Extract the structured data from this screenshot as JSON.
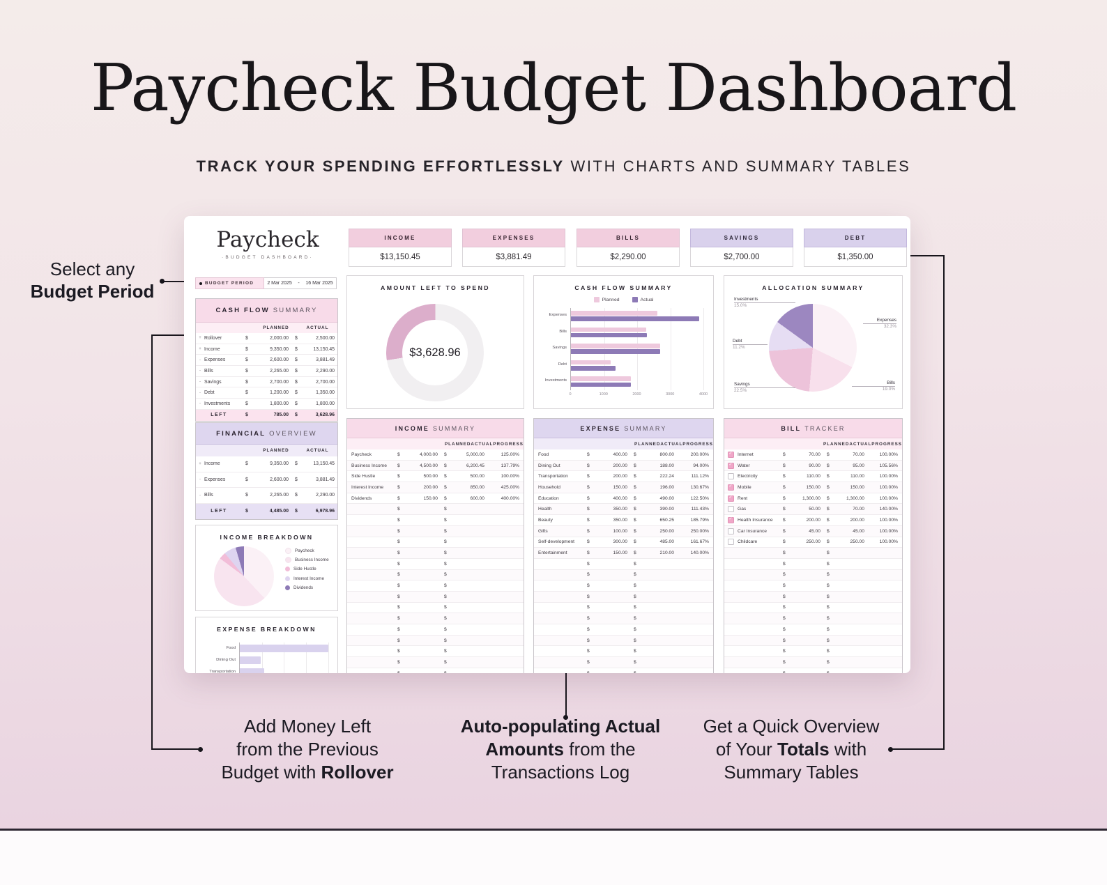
{
  "page": {
    "title": "Paycheck Budget Dashboard",
    "subtitle_bold": "TRACK YOUR SPENDING EFFORTLESSLY",
    "subtitle_rest": " WITH CHARTS AND SUMMARY TABLES"
  },
  "annotations": {
    "budget_period": {
      "line1": "Select any",
      "line2_bold": "Budget Period"
    },
    "rollover": {
      "line1": "Add Money Left",
      "line2": "from the Previous",
      "line3_pre": "Budget with ",
      "line3_bold": "Rollover"
    },
    "auto": {
      "line1_bold": "Auto-populating Actual",
      "line2_bold": "Amounts",
      "line2_rest": " from the",
      "line3": "Transactions Log"
    },
    "overview": {
      "line1": "Get a Quick Overview",
      "line2_pre": "of Your ",
      "line2_bold": "Totals",
      "line2_post": " with",
      "line3": "Summary Tables"
    }
  },
  "dashboard": {
    "logo": {
      "name": "Paycheck",
      "tagline": "·BUDGET DASHBOARD·"
    },
    "cards": [
      {
        "label": "INCOME",
        "value": "$13,150.45",
        "theme": "pink"
      },
      {
        "label": "EXPENSES",
        "value": "$3,881.49",
        "theme": "pink"
      },
      {
        "label": "BILLS",
        "value": "$2,290.00",
        "theme": "pink"
      },
      {
        "label": "SAVINGS",
        "value": "$2,700.00",
        "theme": "lav"
      },
      {
        "label": "DEBT",
        "value": "$1,350.00",
        "theme": "lav"
      }
    ],
    "budget_period": {
      "label": "BUDGET PERIOD",
      "start": "2 Mar 2025",
      "sep": "-",
      "end": "16 Mar 2025"
    },
    "cash_flow_table": {
      "title_bold": "CASH FLOW",
      "title_rest": "SUMMARY",
      "col_planned": "PLANNED",
      "col_actual": "ACTUAL",
      "rows": [
        {
          "sign": "+",
          "label": "Rollover",
          "planned": "2,000.00",
          "actual": "2,500.00"
        },
        {
          "sign": "+",
          "label": "Income",
          "planned": "9,350.00",
          "actual": "13,150.45"
        },
        {
          "sign": "-",
          "label": "Expenses",
          "planned": "2,600.00",
          "actual": "3,881.49"
        },
        {
          "sign": "-",
          "label": "Bills",
          "planned": "2,265.00",
          "actual": "2,290.00"
        },
        {
          "sign": "-",
          "label": "Savings",
          "planned": "2,700.00",
          "actual": "2,700.00"
        },
        {
          "sign": "-",
          "label": "Debt",
          "planned": "1,200.00",
          "actual": "1,350.00"
        },
        {
          "sign": "-",
          "label": "Investments",
          "planned": "1,800.00",
          "actual": "1,800.00"
        }
      ],
      "total": {
        "label": "LEFT",
        "planned": "785.00",
        "actual": "3,628.96"
      }
    },
    "financial_overview": {
      "title_bold": "FINANCIAL",
      "title_rest": "OVERVIEW",
      "col_planned": "PLANNED",
      "col_actual": "ACTUAL",
      "rows": [
        {
          "sign": "+",
          "label": "Income",
          "planned": "9,350.00",
          "actual": "13,150.45"
        },
        {
          "sign": "-",
          "label": "Expenses",
          "planned": "2,600.00",
          "actual": "3,881.49"
        },
        {
          "sign": "-",
          "label": "Bills",
          "planned": "2,265.00",
          "actual": "2,290.00"
        }
      ],
      "total": {
        "label": "LEFT",
        "planned": "4,485.00",
        "actual": "6,978.96"
      }
    },
    "income_summary": {
      "title_bold": "INCOME",
      "title_rest": "SUMMARY",
      "cols": [
        "PLANNED",
        "ACTUAL",
        "PROGRESS"
      ],
      "rows": [
        {
          "label": "Paycheck",
          "planned": "4,000.00",
          "actual": "5,000.00",
          "progress": "125.00%"
        },
        {
          "label": "Business Income",
          "planned": "4,500.00",
          "actual": "6,200.45",
          "progress": "137.79%"
        },
        {
          "label": "Side Hustle",
          "planned": "500.00",
          "actual": "500.00",
          "progress": "100.00%"
        },
        {
          "label": "Interest Income",
          "planned": "200.00",
          "actual": "850.00",
          "progress": "425.00%"
        },
        {
          "label": "Dividends",
          "planned": "150.00",
          "actual": "600.00",
          "progress": "400.00%"
        }
      ],
      "empty_rows": 18
    },
    "expense_summary": {
      "title_bold": "EXPENSE",
      "title_rest": "SUMMARY",
      "cols": [
        "PLANNED",
        "ACTUAL",
        "PROGRESS"
      ],
      "rows": [
        {
          "label": "Food",
          "planned": "400.00",
          "actual": "800.00",
          "progress": "200.00%"
        },
        {
          "label": "Dining Out",
          "planned": "200.00",
          "actual": "188.00",
          "progress": "94.00%"
        },
        {
          "label": "Transportation",
          "planned": "200.00",
          "actual": "222.24",
          "progress": "111.12%"
        },
        {
          "label": "Household",
          "planned": "150.00",
          "actual": "196.00",
          "progress": "130.67%"
        },
        {
          "label": "Education",
          "planned": "400.00",
          "actual": "490.00",
          "progress": "122.50%"
        },
        {
          "label": "Health",
          "planned": "350.00",
          "actual": "390.00",
          "progress": "111.43%"
        },
        {
          "label": "Beauty",
          "planned": "350.00",
          "actual": "650.25",
          "progress": "185.79%"
        },
        {
          "label": "Gifts",
          "planned": "100.00",
          "actual": "250.00",
          "progress": "250.00%"
        },
        {
          "label": "Self-development",
          "planned": "300.00",
          "actual": "485.00",
          "progress": "161.67%"
        },
        {
          "label": "Entertainment",
          "planned": "150.00",
          "actual": "210.00",
          "progress": "140.00%"
        }
      ],
      "empty_rows": 14
    },
    "bill_tracker": {
      "title_bold": "BILL",
      "title_rest": "TRACKER",
      "cols": [
        "PLANNED",
        "ACTUAL",
        "PROGRESS"
      ],
      "rows": [
        {
          "checked": true,
          "label": "Internet",
          "planned": "70.00",
          "actual": "70.00",
          "progress": "100.00%"
        },
        {
          "checked": true,
          "label": "Water",
          "planned": "90.00",
          "actual": "95.00",
          "progress": "105.56%"
        },
        {
          "checked": false,
          "label": "Electricity",
          "planned": "110.00",
          "actual": "110.00",
          "progress": "100.00%"
        },
        {
          "checked": true,
          "label": "Mobile",
          "planned": "150.00",
          "actual": "150.00",
          "progress": "100.00%"
        },
        {
          "checked": true,
          "label": "Rent",
          "planned": "1,300.00",
          "actual": "1,300.00",
          "progress": "100.00%"
        },
        {
          "checked": false,
          "label": "Gas",
          "planned": "50.00",
          "actual": "70.00",
          "progress": "140.00%"
        },
        {
          "checked": true,
          "label": "Health Insurance",
          "planned": "200.00",
          "actual": "200.00",
          "progress": "100.00%"
        },
        {
          "checked": false,
          "label": "Car Insurance",
          "planned": "45.00",
          "actual": "45.00",
          "progress": "100.00%"
        },
        {
          "checked": false,
          "label": "Childcare",
          "planned": "250.00",
          "actual": "250.00",
          "progress": "100.00%"
        }
      ],
      "empty_rows": 15
    }
  },
  "chart_data": [
    {
      "type": "donut",
      "title": "AMOUNT LEFT TO SPEND",
      "center_label": "$3,628.96",
      "amount_left": 3628.96,
      "total_income": 13150.45,
      "fraction_filled": 0.276,
      "start_deg": 261,
      "fill_color": "#dcaecb",
      "track_color": "#f1eff1"
    },
    {
      "type": "bar",
      "orientation": "horizontal",
      "title": "CASH FLOW SUMMARY",
      "categories": [
        "Expenses",
        "Bills",
        "Savings",
        "Debt",
        "Investments"
      ],
      "series": [
        {
          "name": "Planned",
          "color": "#eec9dd",
          "values": [
            2600,
            2265,
            2700,
            1200,
            1800
          ]
        },
        {
          "name": "Actual",
          "color": "#8d7ab6",
          "values": [
            3881.49,
            2290,
            2700,
            1350,
            1800
          ]
        }
      ],
      "xlim": [
        0,
        4000
      ],
      "xticks": [
        "0",
        "1000",
        "2000",
        "3000",
        "4000"
      ],
      "legend_position": "top",
      "grid": true
    },
    {
      "type": "pie",
      "title": "ALLOCATION SUMMARY",
      "labels": [
        "Expenses",
        "Bills",
        "Savings",
        "Debt",
        "Investments"
      ],
      "values": [
        32.3,
        19.0,
        22.5,
        11.2,
        15.0
      ],
      "pct": [
        "32.3%",
        "19.0%",
        "22.5%",
        "11.2%",
        "15.0%"
      ],
      "colors": [
        "#fbf1f6",
        "#f8e0ec",
        "#edc3da",
        "#e6ddf3",
        "#9c87c0"
      ]
    },
    {
      "type": "pie",
      "title": "INCOME BREAKDOWN",
      "labels": [
        "Paycheck",
        "Business Income",
        "Side Hustle",
        "Interest Income",
        "Dividends"
      ],
      "values": [
        5000,
        6200.45,
        500,
        850,
        600
      ],
      "colors": [
        "#fbf1f6",
        "#f8e4ef",
        "#f2bdd8",
        "#ded4f0",
        "#8d7ab6"
      ],
      "legend_position": "right"
    },
    {
      "type": "bar",
      "orientation": "horizontal",
      "title": "EXPENSE BREAKDOWN",
      "categories": [
        "Food",
        "Dining Out",
        "Transportation"
      ],
      "values": [
        800,
        188,
        222.24
      ],
      "color": "#d9d2ee",
      "xlim": [
        0,
        820
      ],
      "grid": true,
      "note": "chart cropped at dashboard edge"
    }
  ]
}
